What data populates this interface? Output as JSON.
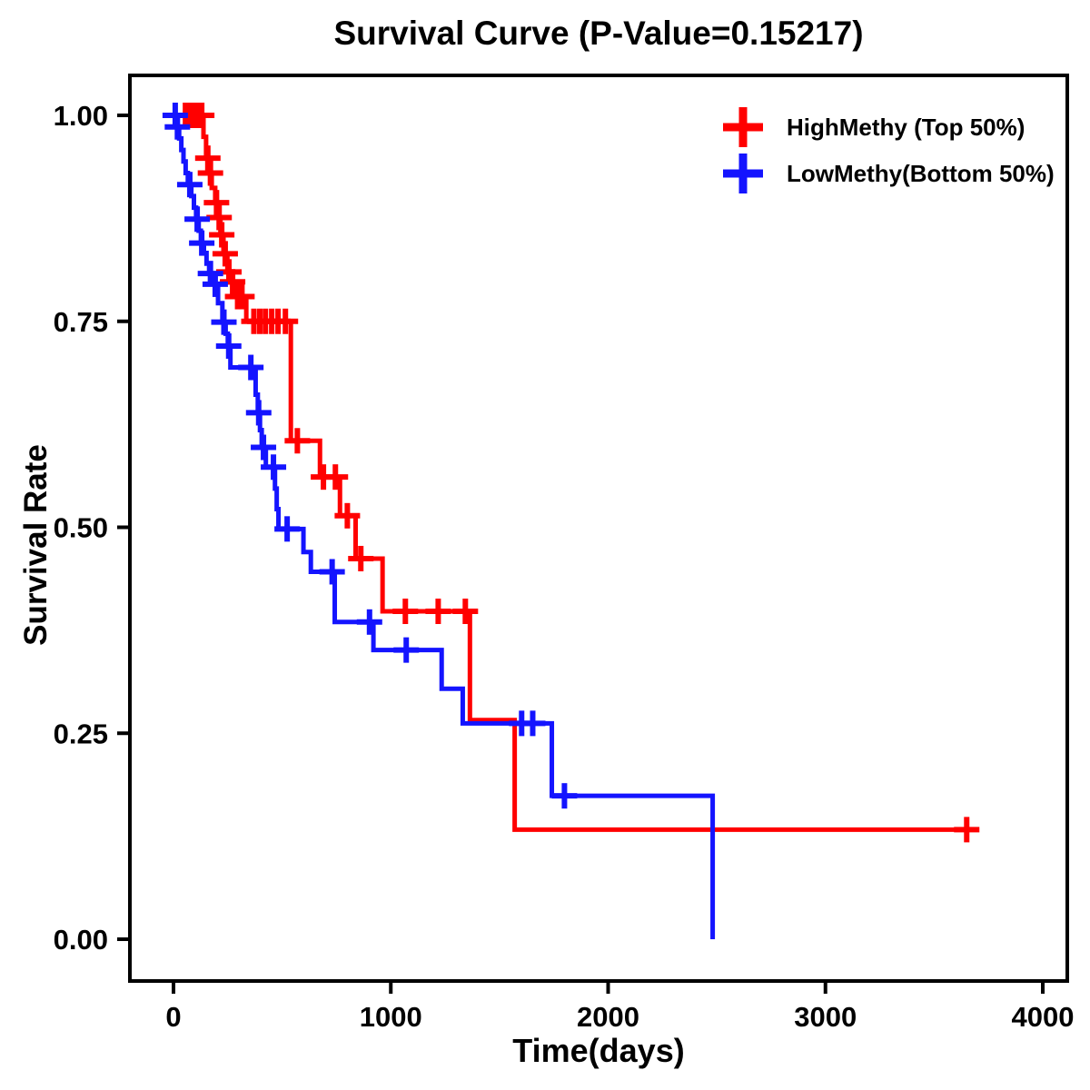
{
  "chart_data": {
    "type": "line",
    "subtype": "kaplan-meier-step-curve",
    "title": "Survival Curve (P-Value=0.15217)",
    "p_value": "0.15217",
    "xlabel": "Time(days)",
    "ylabel": "Survival Rate",
    "xlim": [
      0,
      4150
    ],
    "ylim": [
      0.0,
      1.0
    ],
    "grid": false,
    "legend_position": "top-right",
    "frame_color": "#000000",
    "x_ticks": [
      {
        "label": "0",
        "value": 0
      },
      {
        "label": "1000",
        "value": 1000
      },
      {
        "label": "2000",
        "value": 2000
      },
      {
        "label": "3000",
        "value": 3000
      },
      {
        "label": "4000",
        "value": 4000
      }
    ],
    "y_ticks": [
      {
        "label": "1.00",
        "value": 1.0
      },
      {
        "label": "0.75",
        "value": 0.75
      },
      {
        "label": "0.50",
        "value": 0.5
      },
      {
        "label": "0.25",
        "value": 0.25
      },
      {
        "label": "0.00",
        "value": 0.0
      }
    ],
    "series": [
      {
        "name": "HighMethy (Top 50%)",
        "color": "#FF0000",
        "end_time": 3700,
        "steps": [
          [
            0,
            1.0
          ],
          [
            138,
            0.974
          ],
          [
            150,
            0.948
          ],
          [
            164,
            0.93
          ],
          [
            176,
            0.912
          ],
          [
            192,
            0.894
          ],
          [
            204,
            0.876
          ],
          [
            216,
            0.855
          ],
          [
            230,
            0.832
          ],
          [
            248,
            0.81
          ],
          [
            266,
            0.798
          ],
          [
            285,
            0.78
          ],
          [
            335,
            0.75
          ],
          [
            540,
            0.605
          ],
          [
            674,
            0.561
          ],
          [
            766,
            0.514
          ],
          [
            838,
            0.462
          ],
          [
            962,
            0.398
          ],
          [
            1364,
            0.266
          ],
          [
            1570,
            0.133
          ]
        ],
        "censors": [
          [
            55,
            1.0
          ],
          [
            75,
            1.0
          ],
          [
            95,
            1.0
          ],
          [
            115,
            1.0
          ],
          [
            130,
            1.0
          ],
          [
            158,
            0.948
          ],
          [
            170,
            0.93
          ],
          [
            198,
            0.894
          ],
          [
            210,
            0.876
          ],
          [
            222,
            0.855
          ],
          [
            238,
            0.832
          ],
          [
            255,
            0.81
          ],
          [
            272,
            0.798
          ],
          [
            295,
            0.78
          ],
          [
            315,
            0.78
          ],
          [
            370,
            0.75
          ],
          [
            397,
            0.75
          ],
          [
            423,
            0.75
          ],
          [
            452,
            0.75
          ],
          [
            481,
            0.75
          ],
          [
            515,
            0.75
          ],
          [
            570,
            0.605
          ],
          [
            690,
            0.561
          ],
          [
            745,
            0.561
          ],
          [
            800,
            0.514
          ],
          [
            862,
            0.462
          ],
          [
            1067,
            0.398
          ],
          [
            1218,
            0.398
          ],
          [
            1343,
            0.398
          ],
          [
            3650,
            0.133
          ]
        ]
      },
      {
        "name": "LowMethy(Bottom 50%)",
        "color": "#1414FF",
        "end_time": 2481,
        "steps": [
          [
            0,
            1.0
          ],
          [
            14,
            0.986
          ],
          [
            26,
            0.972
          ],
          [
            36,
            0.958
          ],
          [
            46,
            0.944
          ],
          [
            56,
            0.93
          ],
          [
            66,
            0.916
          ],
          [
            82,
            0.902
          ],
          [
            94,
            0.888
          ],
          [
            104,
            0.874
          ],
          [
            116,
            0.86
          ],
          [
            126,
            0.845
          ],
          [
            140,
            0.833
          ],
          [
            152,
            0.82
          ],
          [
            164,
            0.808
          ],
          [
            180,
            0.795
          ],
          [
            205,
            0.772
          ],
          [
            225,
            0.749
          ],
          [
            240,
            0.735
          ],
          [
            250,
            0.72
          ],
          [
            262,
            0.694
          ],
          [
            378,
            0.661
          ],
          [
            388,
            0.639
          ],
          [
            398,
            0.618
          ],
          [
            406,
            0.597
          ],
          [
            425,
            0.573
          ],
          [
            467,
            0.547
          ],
          [
            475,
            0.522
          ],
          [
            483,
            0.498
          ],
          [
            598,
            0.47
          ],
          [
            632,
            0.446
          ],
          [
            742,
            0.385
          ],
          [
            920,
            0.351
          ],
          [
            1234,
            0.304
          ],
          [
            1331,
            0.262
          ],
          [
            1741,
            0.174
          ],
          [
            2481,
            0.0
          ]
        ],
        "censors": [
          [
            8,
            1.0
          ],
          [
            18,
            0.986
          ],
          [
            75,
            0.916
          ],
          [
            109,
            0.874
          ],
          [
            130,
            0.845
          ],
          [
            170,
            0.808
          ],
          [
            192,
            0.795
          ],
          [
            232,
            0.749
          ],
          [
            254,
            0.72
          ],
          [
            356,
            0.694
          ],
          [
            392,
            0.639
          ],
          [
            414,
            0.597
          ],
          [
            460,
            0.573
          ],
          [
            523,
            0.498
          ],
          [
            730,
            0.446
          ],
          [
            902,
            0.385
          ],
          [
            1071,
            0.351
          ],
          [
            1602,
            0.262
          ],
          [
            1653,
            0.262
          ],
          [
            1799,
            0.174
          ]
        ]
      }
    ]
  }
}
